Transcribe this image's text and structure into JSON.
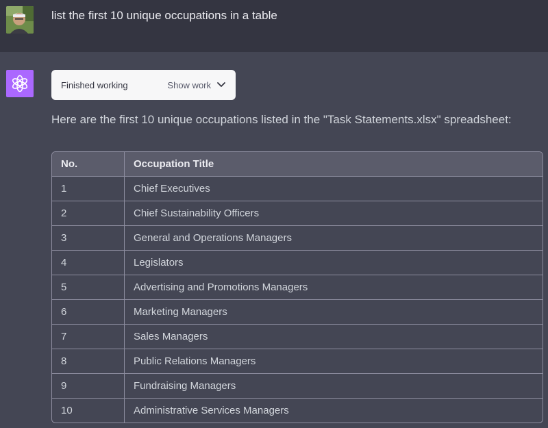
{
  "user": {
    "message": "list the first 10 unique occupations in a table"
  },
  "assistant": {
    "work_status": "Finished working",
    "show_work_label": "Show work",
    "intro": "Here are the first 10 unique occupations listed in the \"Task Statements.xlsx\" spreadsheet:",
    "table": {
      "headers": [
        "No.",
        "Occupation Title"
      ],
      "rows": [
        [
          "1",
          "Chief Executives"
        ],
        [
          "2",
          "Chief Sustainability Officers"
        ],
        [
          "3",
          "General and Operations Managers"
        ],
        [
          "4",
          "Legislators"
        ],
        [
          "5",
          "Advertising and Promotions Managers"
        ],
        [
          "6",
          "Marketing Managers"
        ],
        [
          "7",
          "Sales Managers"
        ],
        [
          "8",
          "Public Relations Managers"
        ],
        [
          "9",
          "Fundraising Managers"
        ],
        [
          "10",
          "Administrative Services Managers"
        ]
      ]
    }
  },
  "icons": {
    "avatar": "user-avatar",
    "assistant": "openai-logo-icon",
    "chevron": "chevron-down-icon"
  },
  "colors": {
    "user_bg": "#343541",
    "assistant_bg": "#444654",
    "logo_bg": "#ab68ff",
    "header_bg": "#5b5c6b"
  }
}
